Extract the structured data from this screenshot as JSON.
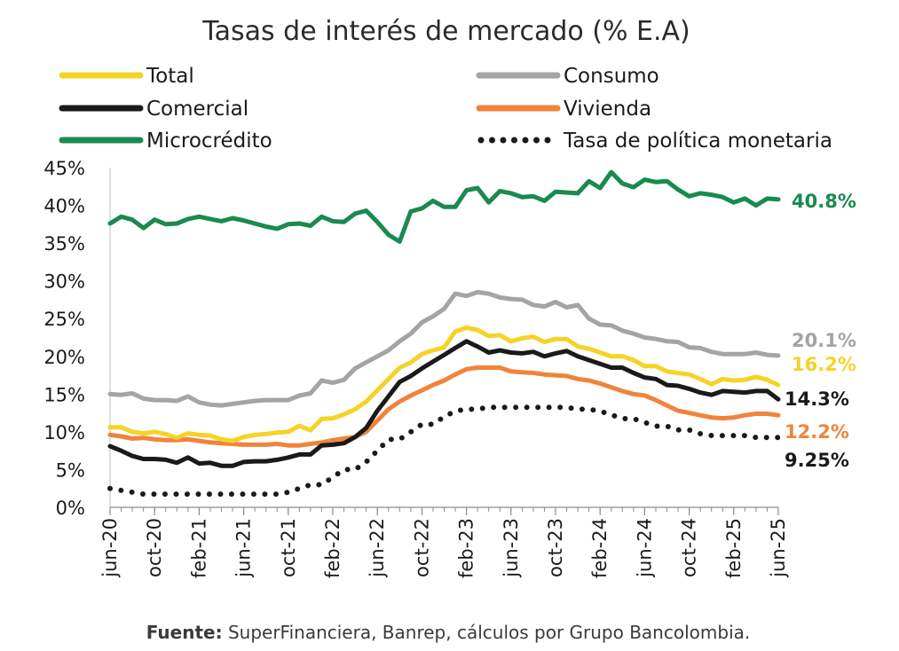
{
  "chart_data": {
    "type": "line",
    "title": "Tasas de interés de mercado (% E.A)",
    "ylim": [
      0,
      45
    ],
    "y_ticks": [
      "0%",
      "5%",
      "10%",
      "15%",
      "20%",
      "25%",
      "30%",
      "35%",
      "40%",
      "45%"
    ],
    "x_tick_labels": [
      "jun-20",
      "oct-20",
      "feb-21",
      "jun-21",
      "oct-21",
      "feb-22",
      "jun-22",
      "oct-22",
      "feb-23",
      "jun-23",
      "oct-23",
      "feb-24",
      "jun-24",
      "oct-24",
      "feb-25",
      "jun-25"
    ],
    "x": [
      "jun-20",
      "jul-20",
      "ago-20",
      "sep-20",
      "oct-20",
      "nov-20",
      "dic-20",
      "ene-21",
      "feb-21",
      "mar-21",
      "abr-21",
      "may-21",
      "jun-21",
      "jul-21",
      "ago-21",
      "sep-21",
      "oct-21",
      "nov-21",
      "dic-21",
      "ene-22",
      "feb-22",
      "mar-22",
      "abr-22",
      "may-22",
      "jun-22",
      "jul-22",
      "ago-22",
      "sep-22",
      "oct-22",
      "nov-22",
      "dic-22",
      "ene-23",
      "feb-23",
      "mar-23",
      "abr-23",
      "may-23",
      "jun-23",
      "jul-23",
      "ago-23",
      "sep-23",
      "oct-23",
      "nov-23",
      "dic-23",
      "ene-24",
      "feb-24",
      "mar-24",
      "abr-24",
      "may-24",
      "jun-24",
      "jul-24",
      "ago-24",
      "sep-24",
      "oct-24",
      "nov-24",
      "dic-24",
      "ene-25",
      "feb-25",
      "mar-25",
      "abr-25",
      "may-25",
      "jun-25"
    ],
    "series": [
      {
        "name": "Total",
        "color": "#F5D327",
        "dashed": false,
        "end_label": "16.2%",
        "values": [
          10.6,
          10.6,
          10.0,
          9.8,
          10.0,
          9.7,
          9.2,
          9.8,
          9.6,
          9.5,
          9.0,
          8.8,
          9.3,
          9.6,
          9.7,
          9.9,
          10.0,
          10.8,
          10.2,
          11.7,
          11.8,
          12.3,
          13.0,
          14.0,
          15.5,
          17.0,
          18.5,
          19.2,
          20.3,
          20.8,
          21.2,
          23.3,
          23.8,
          23.5,
          22.7,
          22.8,
          22.0,
          22.4,
          22.6,
          21.9,
          22.3,
          22.3,
          21.3,
          21.0,
          20.5,
          20.0,
          20.0,
          19.5,
          18.7,
          18.7,
          18.0,
          17.8,
          17.6,
          17.0,
          16.3,
          17.0,
          16.8,
          16.9,
          17.3,
          16.9,
          16.2
        ]
      },
      {
        "name": "Consumo",
        "color": "#A6A3A1",
        "dashed": false,
        "end_label": "20.1%",
        "values": [
          15.0,
          14.9,
          15.1,
          14.4,
          14.2,
          14.2,
          14.1,
          14.7,
          13.9,
          13.6,
          13.5,
          13.7,
          13.9,
          14.1,
          14.2,
          14.2,
          14.2,
          14.8,
          15.1,
          16.8,
          16.5,
          16.9,
          18.4,
          19.2,
          20.0,
          20.8,
          22.0,
          23.0,
          24.5,
          25.3,
          26.3,
          28.3,
          28.0,
          28.5,
          28.3,
          27.8,
          27.6,
          27.5,
          26.8,
          26.6,
          27.2,
          26.5,
          26.8,
          25.0,
          24.2,
          24.1,
          23.4,
          23.0,
          22.5,
          22.3,
          22.0,
          21.9,
          21.2,
          21.1,
          20.6,
          20.3,
          20.3,
          20.3,
          20.5,
          20.2,
          20.1
        ]
      },
      {
        "name": "Comercial",
        "color": "#1A1A1A",
        "dashed": false,
        "end_label": "14.3%",
        "values": [
          8.1,
          7.5,
          6.8,
          6.4,
          6.4,
          6.3,
          5.9,
          6.6,
          5.8,
          5.9,
          5.5,
          5.5,
          6.0,
          6.1,
          6.1,
          6.3,
          6.6,
          7.0,
          7.0,
          8.2,
          8.3,
          8.5,
          9.3,
          10.5,
          12.8,
          14.7,
          16.6,
          17.4,
          18.4,
          19.3,
          20.2,
          21.1,
          22.0,
          21.3,
          20.5,
          20.8,
          20.5,
          20.4,
          20.6,
          20.0,
          20.4,
          20.7,
          20.0,
          19.5,
          19.0,
          18.5,
          18.5,
          17.8,
          17.2,
          17.0,
          16.2,
          16.1,
          15.7,
          15.2,
          14.9,
          15.4,
          15.3,
          15.2,
          15.4,
          15.4,
          14.3
        ]
      },
      {
        "name": "Vivienda",
        "color": "#F0843A",
        "dashed": false,
        "end_label": "12.2%",
        "values": [
          9.6,
          9.4,
          9.1,
          9.2,
          9.0,
          8.9,
          8.9,
          9.0,
          8.8,
          8.6,
          8.5,
          8.4,
          8.3,
          8.3,
          8.3,
          8.4,
          8.2,
          8.2,
          8.4,
          8.6,
          8.9,
          9.1,
          9.3,
          10.0,
          11.5,
          13.0,
          14.0,
          14.8,
          15.5,
          16.2,
          16.8,
          17.6,
          18.3,
          18.5,
          18.5,
          18.5,
          18.0,
          17.9,
          17.8,
          17.6,
          17.5,
          17.4,
          17.0,
          16.8,
          16.4,
          15.9,
          15.4,
          15.0,
          14.8,
          14.2,
          13.5,
          12.8,
          12.5,
          12.2,
          11.9,
          11.8,
          11.9,
          12.2,
          12.4,
          12.4,
          12.2
        ]
      },
      {
        "name": "Microcrédito",
        "color": "#1A8A4F",
        "dashed": false,
        "end_label": "40.8%",
        "values": [
          37.6,
          38.5,
          38.1,
          37.0,
          38.1,
          37.5,
          37.6,
          38.2,
          38.5,
          38.2,
          37.9,
          38.3,
          38.0,
          37.6,
          37.2,
          36.9,
          37.5,
          37.6,
          37.3,
          38.5,
          37.9,
          37.8,
          38.9,
          39.3,
          37.8,
          36.1,
          35.2,
          39.2,
          39.6,
          40.6,
          39.8,
          39.8,
          42.0,
          42.3,
          40.4,
          41.9,
          41.6,
          41.1,
          41.2,
          40.6,
          41.8,
          41.7,
          41.6,
          43.2,
          42.3,
          44.4,
          42.9,
          42.4,
          43.4,
          43.1,
          43.2,
          42.1,
          41.2,
          41.6,
          41.4,
          41.1,
          40.4,
          40.9,
          40.0,
          40.9,
          40.8
        ]
      },
      {
        "name": "Tasa de política monetaria",
        "color": "#1A1A1A",
        "dashed": true,
        "end_label": "9.25%",
        "values": [
          2.5,
          2.25,
          2.0,
          1.75,
          1.75,
          1.75,
          1.75,
          1.75,
          1.75,
          1.75,
          1.75,
          1.75,
          1.75,
          1.75,
          1.75,
          1.75,
          2.0,
          2.5,
          3.0,
          3.0,
          4.0,
          5.0,
          5.0,
          6.0,
          7.5,
          9.0,
          9.0,
          10.0,
          11.0,
          11.0,
          12.0,
          12.75,
          13.0,
          13.0,
          13.25,
          13.25,
          13.25,
          13.25,
          13.25,
          13.25,
          13.25,
          13.25,
          13.0,
          13.0,
          12.75,
          12.25,
          11.75,
          11.75,
          11.25,
          10.75,
          10.75,
          10.25,
          10.25,
          9.75,
          9.5,
          9.5,
          9.5,
          9.5,
          9.25,
          9.25,
          9.25
        ]
      }
    ]
  },
  "source": {
    "prefix": "Fuente:",
    "text": " SuperFinanciera, Banrep, cálculos por Grupo Bancolombia."
  }
}
